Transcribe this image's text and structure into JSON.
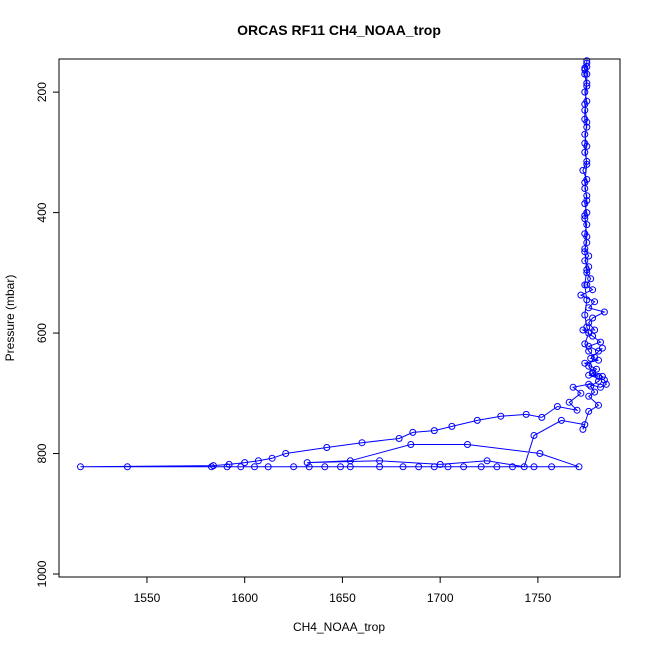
{
  "chart_data": {
    "type": "line",
    "title": "ORCAS RF11 CH4_NOAA_trop",
    "xlabel": "CH4_NOAA_trop",
    "ylabel": "Pressure (mbar)",
    "xlim": [
      1505,
      1792
    ],
    "ylim": [
      1005,
      145
    ],
    "y_reversed": true,
    "grid": false,
    "x_ticks": [
      1550,
      1600,
      1650,
      1700,
      1750
    ],
    "y_ticks": [
      200,
      400,
      600,
      800,
      1000
    ],
    "series": [
      {
        "color": "#0000ff",
        "marker": "open-circle",
        "points": [
          [
            1775,
            148
          ],
          [
            1775,
            152
          ],
          [
            1774,
            160
          ],
          [
            1774,
            163
          ],
          [
            1775,
            170
          ],
          [
            1775,
            185
          ],
          [
            1774,
            200
          ],
          [
            1775,
            215
          ],
          [
            1774,
            230
          ],
          [
            1774,
            245
          ],
          [
            1775,
            258
          ],
          [
            1774,
            270
          ],
          [
            1775,
            290
          ],
          [
            1774,
            300
          ],
          [
            1775,
            315
          ],
          [
            1773,
            330
          ],
          [
            1775,
            345
          ],
          [
            1774,
            360
          ],
          [
            1775,
            372
          ],
          [
            1774,
            385
          ],
          [
            1775,
            400
          ],
          [
            1774,
            410
          ],
          [
            1775,
            420
          ],
          [
            1774,
            435
          ],
          [
            1775,
            450
          ],
          [
            1774,
            460
          ],
          [
            1776,
            472
          ],
          [
            1774,
            480
          ],
          [
            1776,
            490
          ],
          [
            1775,
            500
          ],
          [
            1777,
            510
          ],
          [
            1775,
            520
          ],
          [
            1778,
            528
          ],
          [
            1772,
            537
          ],
          [
            1779,
            548
          ],
          [
            1776,
            558
          ],
          [
            1784,
            565
          ],
          [
            1778,
            575
          ],
          [
            1776,
            583
          ],
          [
            1779,
            595
          ],
          [
            1773,
            595
          ],
          [
            1778,
            605
          ],
          [
            1782,
            615
          ],
          [
            1776,
            622
          ],
          [
            1781,
            630
          ],
          [
            1783,
            625
          ],
          [
            1777,
            642
          ],
          [
            1781,
            645
          ],
          [
            1774,
            650
          ],
          [
            1780,
            660
          ],
          [
            1778,
            667
          ],
          [
            1781,
            672
          ],
          [
            1776,
            670
          ],
          [
            1784,
            678
          ],
          [
            1785,
            685
          ],
          [
            1782,
            690
          ],
          [
            1776,
            685
          ],
          [
            1768,
            690
          ],
          [
            1772,
            700
          ],
          [
            1766,
            715
          ],
          [
            1770,
            728
          ],
          [
            1760,
            722
          ],
          [
            1752,
            740
          ],
          [
            1744,
            735
          ],
          [
            1731,
            738
          ],
          [
            1719,
            745
          ],
          [
            1706,
            755
          ],
          [
            1697,
            762
          ],
          [
            1686,
            765
          ],
          [
            1679,
            775
          ],
          [
            1660,
            782
          ],
          [
            1642,
            790
          ],
          [
            1621,
            800
          ],
          [
            1614,
            808
          ],
          [
            1607,
            812
          ],
          [
            1600,
            815
          ],
          [
            1592,
            818
          ],
          [
            1584,
            820
          ],
          [
            1516,
            822
          ],
          [
            1540,
            822
          ],
          [
            1583,
            822
          ],
          [
            1591,
            822
          ],
          [
            1598,
            822
          ],
          [
            1605,
            822
          ],
          [
            1612,
            822
          ],
          [
            1625,
            822
          ],
          [
            1633,
            822
          ],
          [
            1641,
            822
          ],
          [
            1649,
            822
          ],
          [
            1654,
            822
          ],
          [
            1669,
            822
          ],
          [
            1681,
            822
          ],
          [
            1689,
            822
          ],
          [
            1697,
            822
          ],
          [
            1704,
            822
          ],
          [
            1712,
            822
          ],
          [
            1721,
            822
          ],
          [
            1729,
            822
          ],
          [
            1737,
            822
          ],
          [
            1748,
            822
          ],
          [
            1757,
            822
          ],
          [
            1771,
            822
          ],
          [
            1751,
            800
          ],
          [
            1714,
            785
          ],
          [
            1685,
            785
          ],
          [
            1654,
            812
          ],
          [
            1632,
            815
          ],
          [
            1669,
            812
          ],
          [
            1700,
            818
          ],
          [
            1724,
            812
          ],
          [
            1743,
            822
          ],
          [
            1748,
            770
          ],
          [
            1762,
            745
          ],
          [
            1774,
            752
          ],
          [
            1773,
            760
          ],
          [
            1776,
            730
          ],
          [
            1781,
            720
          ],
          [
            1776,
            705
          ],
          [
            1779,
            698
          ],
          [
            1777,
            688
          ],
          [
            1781,
            680
          ],
          [
            1783,
            672
          ],
          [
            1778,
            665
          ],
          [
            1776,
            655
          ],
          [
            1779,
            640
          ],
          [
            1776,
            630
          ],
          [
            1774,
            618
          ],
          [
            1776,
            600
          ],
          [
            1775,
            590
          ],
          [
            1774,
            570
          ],
          [
            1775,
            545
          ],
          [
            1774,
            520
          ],
          [
            1775,
            495
          ],
          [
            1774,
            465
          ],
          [
            1775,
            440
          ],
          [
            1774,
            405
          ],
          [
            1775,
            380
          ],
          [
            1774,
            350
          ],
          [
            1775,
            320
          ],
          [
            1774,
            285
          ],
          [
            1775,
            250
          ],
          [
            1774,
            220
          ],
          [
            1775,
            190
          ],
          [
            1774,
            170
          ],
          [
            1775,
            158
          ]
        ]
      }
    ]
  }
}
